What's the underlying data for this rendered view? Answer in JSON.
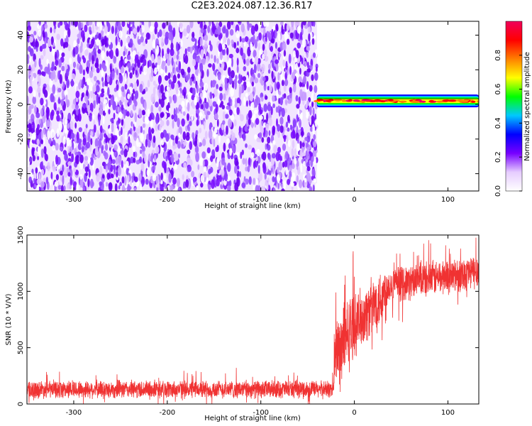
{
  "title": "C2E3.2024.087.12.36.R17",
  "chart_data": [
    {
      "type": "heatmap",
      "xlabel": "Height of straight line (km)",
      "ylabel": "Frequency (Hz)",
      "xlim": [
        -350,
        133
      ],
      "ylim": [
        -50,
        48
      ],
      "xticks": [
        -300,
        -200,
        -100,
        0,
        100
      ],
      "yticks": [
        -40,
        -20,
        0,
        20,
        40
      ],
      "noise_region_x": [
        -350,
        -40
      ],
      "signal_band_start_x": -40,
      "signal_band_center_hz": 2,
      "colorbar": {
        "label": "Normalized spectral amplitude",
        "range": [
          0.0,
          1.0
        ],
        "ticks": [
          0.0,
          0.2,
          0.4,
          0.6,
          0.8
        ],
        "colormap": [
          "#ffffff",
          "#e6ccff",
          "#7700ff",
          "#0000ff",
          "#00c8ff",
          "#00ff00",
          "#ffff00",
          "#ff8000",
          "#ff0000",
          "#f0005a"
        ]
      }
    },
    {
      "type": "line",
      "xlabel": "Height of straight line (km)",
      "ylabel": "SNR (10 * V/V)",
      "xlim": [
        -350,
        133
      ],
      "ylim": [
        0,
        1500
      ],
      "xticks": [
        -300,
        -200,
        -100,
        0,
        100
      ],
      "yticks": [
        0,
        500,
        1000,
        1500
      ],
      "line_color": "#f03232",
      "segments": [
        {
          "x": [
            -350,
            -22
          ],
          "mean": 130,
          "noise": 90
        },
        {
          "x": [
            -22,
            0
          ],
          "mean": 420,
          "noise": 380,
          "trend_to": 700
        },
        {
          "x": [
            0,
            35
          ],
          "mean": 700,
          "noise": 300,
          "trend_to": 1000
        },
        {
          "x": [
            35,
            133
          ],
          "mean": 1050,
          "noise": 180,
          "trend_to": 1180
        }
      ]
    }
  ]
}
